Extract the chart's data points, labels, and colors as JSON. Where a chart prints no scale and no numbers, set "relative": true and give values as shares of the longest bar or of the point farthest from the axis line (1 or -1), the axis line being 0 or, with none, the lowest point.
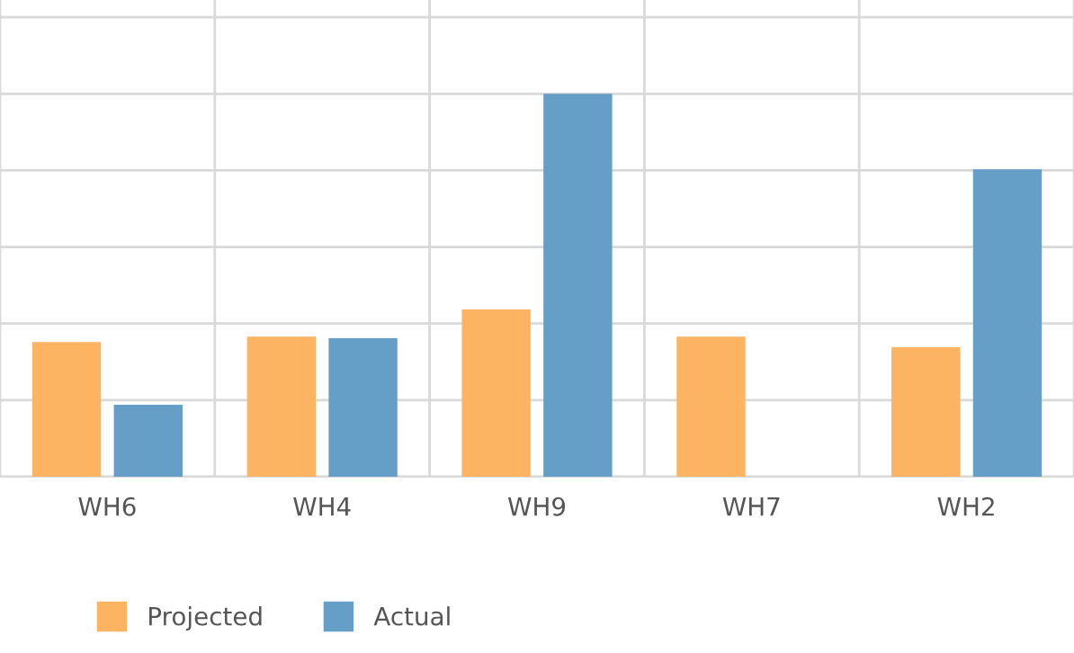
{
  "chart_data": {
    "type": "bar",
    "relative": true,
    "categories": [
      "WH6",
      "WH4",
      "WH9",
      "WH7",
      "WH2"
    ],
    "series": [
      {
        "name": "Projected",
        "color": "#fdb462",
        "values": [
          0.352,
          0.366,
          0.437,
          0.366,
          0.338
        ]
      },
      {
        "name": "Actual",
        "color": "#659fc7",
        "values": [
          0.188,
          0.362,
          1,
          null,
          0.803
        ]
      }
    ],
    "grid": true,
    "legend": "bottom left"
  }
}
